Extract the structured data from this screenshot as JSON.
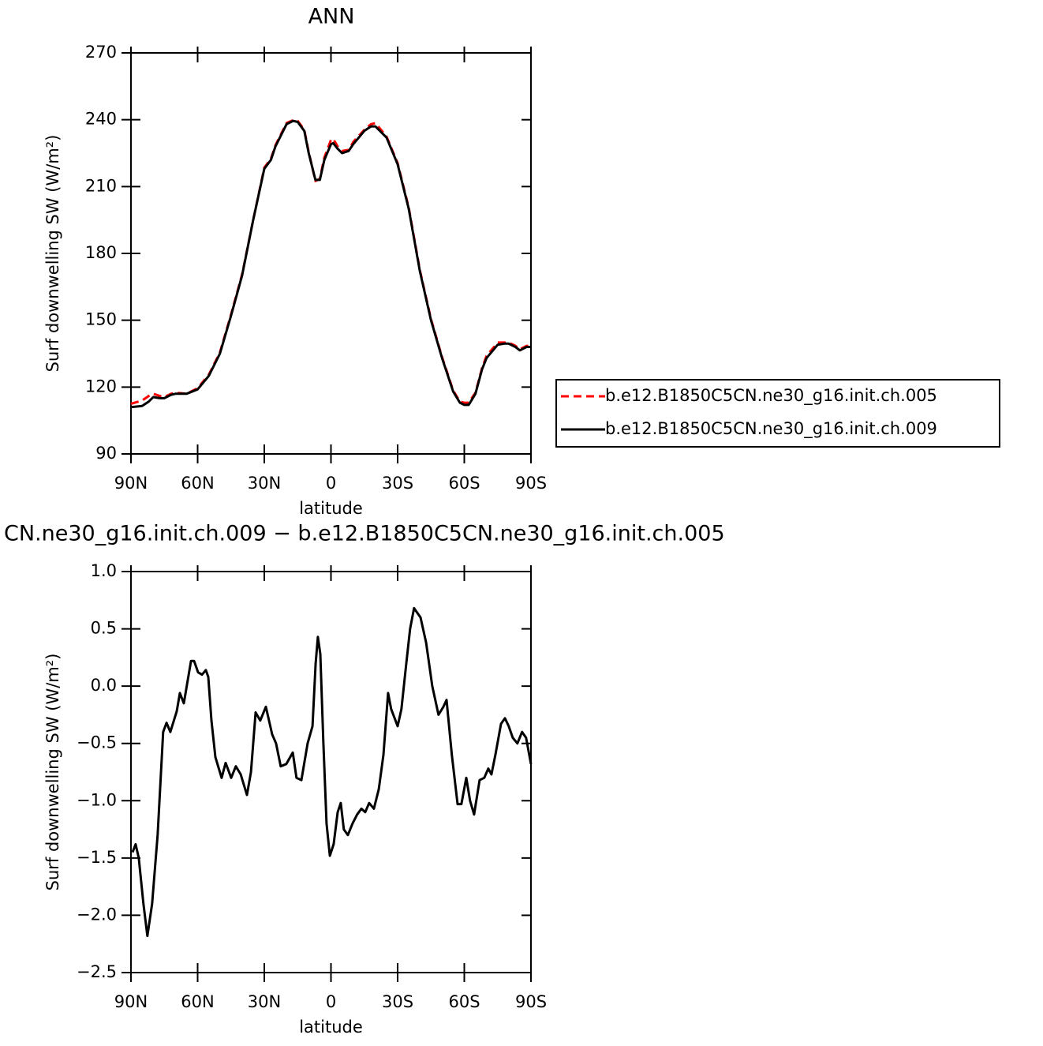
{
  "chart_data": [
    {
      "type": "line",
      "title": "ANN",
      "xlabel": "latitude",
      "ylabel": "Surf downwelling SW (W/m²)",
      "x": [
        90,
        85,
        82,
        80,
        77,
        75,
        72,
        70,
        65,
        60,
        55,
        50,
        45,
        40,
        35,
        30,
        27,
        25,
        20,
        17,
        15,
        12,
        10,
        7,
        5,
        3,
        0,
        -1,
        -3,
        -5,
        -8,
        -10,
        -15,
        -18,
        -20,
        -25,
        -30,
        -35,
        -40,
        -45,
        -50,
        -55,
        -58,
        -60,
        -62,
        -65,
        -68,
        -70,
        -75,
        -78,
        -80,
        -83,
        -85,
        -88,
        -90
      ],
      "series": [
        {
          "name": "b.e12.B1850C5CN.ne30_g16.init.ch.005",
          "color": "#ff0000",
          "line_style": "dashed",
          "values": [
            112.5,
            114,
            116,
            117,
            116,
            115.5,
            117,
            117.5,
            117,
            119.5,
            125.5,
            135.5,
            152.5,
            170.5,
            195,
            218.5,
            222.5,
            228.5,
            238.5,
            239.8,
            239.5,
            235.5,
            225.5,
            212.5,
            213.5,
            223,
            231,
            231.5,
            228,
            226,
            226.5,
            230,
            235.5,
            238,
            238.5,
            232.5,
            220.5,
            200.5,
            172.5,
            150.5,
            133.5,
            118.5,
            113.5,
            113,
            113,
            117.5,
            128.5,
            134,
            140,
            140,
            140,
            138.5,
            137,
            138.5,
            138.5
          ]
        },
        {
          "name": "b.e12.B1850C5CN.ne30_g16.init.ch.009",
          "color": "#000000",
          "line_style": "solid",
          "values": [
            111,
            111.5,
            113.5,
            115.5,
            115,
            115,
            116.5,
            117,
            117,
            119,
            125,
            135,
            152,
            170,
            195,
            218,
            222,
            228,
            238,
            239.5,
            239,
            235,
            225,
            213,
            213,
            222,
            229,
            229.5,
            227,
            225,
            226,
            229,
            235,
            237,
            237,
            232,
            220,
            200,
            172,
            150,
            133,
            118,
            113,
            112,
            112,
            117,
            128,
            133,
            139,
            139.5,
            139.5,
            138,
            136.5,
            138,
            138
          ]
        }
      ],
      "xlim": [
        90,
        -90
      ],
      "xticks": [
        {
          "value": 90,
          "label": "90N"
        },
        {
          "value": 60,
          "label": "60N"
        },
        {
          "value": 30,
          "label": "30N"
        },
        0,
        {
          "value": -30,
          "label": "30S"
        },
        {
          "value": -60,
          "label": "60S"
        },
        {
          "value": -90,
          "label": "90S"
        }
      ],
      "ylim": [
        90,
        270
      ],
      "yticks": [
        90,
        120,
        150,
        180,
        210,
        240,
        270
      ],
      "legend": "right"
    },
    {
      "type": "line",
      "title": "CN.ne30_g16.init.ch.009 − b.e12.B1850C5CN.ne30_g16.init.ch.005",
      "xlabel": "latitude",
      "ylabel": "Surf downwelling SW (W/m²)",
      "x": [
        89.3,
        87.9,
        86.5,
        84.4,
        82.6,
        80.5,
        78,
        75.5,
        74,
        72.3,
        69.4,
        68,
        66.2,
        63,
        61.6,
        59.8,
        58,
        56.3,
        55.2,
        53.8,
        52,
        49.2,
        47.4,
        44.9,
        42.8,
        40.6,
        37.8,
        36,
        33.9,
        31.8,
        29.3,
        26.5,
        24.7,
        22.6,
        20.1,
        17.2,
        15.5,
        13.3,
        10.5,
        8.3,
        6.9,
        5.9,
        4.8,
        3.4,
        2,
        0.5,
        -1.2,
        -3,
        -4.4,
        -5.8,
        -7.6,
        -9.7,
        -11.8,
        -13.7,
        -15.4,
        -17.2,
        -19.3,
        -21.5,
        -23.6,
        -25.7,
        -27.1,
        -30,
        -31.7,
        -33.9,
        -35.6,
        -37.4,
        -40.3,
        -42.8,
        -45.6,
        -48.4,
        -50.6,
        -52,
        -54.4,
        -57,
        -58.7,
        -60.9,
        -62.6,
        -64.4,
        -66.9,
        -69,
        -70.8,
        -72.2,
        -74,
        -76.5,
        -78.3,
        -80,
        -81.8,
        -83.9,
        -86,
        -87.8,
        -90
      ],
      "series": [
        {
          "color": "#000000",
          "line_style": "solid",
          "values": [
            -1.45,
            -1.38,
            -1.5,
            -1.9,
            -2.18,
            -1.9,
            -1.3,
            -0.4,
            -0.32,
            -0.4,
            -0.22,
            -0.06,
            -0.15,
            0.22,
            0.22,
            0.12,
            0.1,
            0.14,
            0.08,
            -0.3,
            -0.62,
            -0.8,
            -0.67,
            -0.8,
            -0.7,
            -0.77,
            -0.95,
            -0.75,
            -0.23,
            -0.3,
            -0.18,
            -0.42,
            -0.5,
            -0.7,
            -0.68,
            -0.58,
            -0.8,
            -0.82,
            -0.5,
            -0.35,
            0.2,
            0.43,
            0.28,
            -0.5,
            -1.2,
            -1.48,
            -1.38,
            -1.1,
            -1.02,
            -1.25,
            -1.3,
            -1.2,
            -1.12,
            -1.07,
            -1.1,
            -1.02,
            -1.07,
            -0.9,
            -0.6,
            -0.06,
            -0.2,
            -0.35,
            -0.2,
            0.2,
            0.5,
            0.68,
            0.6,
            0.38,
            0,
            -0.25,
            -0.18,
            -0.12,
            -0.6,
            -1.03,
            -1.03,
            -0.8,
            -1.0,
            -1.12,
            -0.82,
            -0.8,
            -0.72,
            -0.77,
            -0.6,
            -0.33,
            -0.28,
            -0.35,
            -0.45,
            -0.5,
            -0.4,
            -0.45,
            -0.68
          ]
        }
      ],
      "xlim": [
        90,
        -90
      ],
      "xticks": [
        {
          "value": 90,
          "label": "90N"
        },
        {
          "value": 60,
          "label": "60N"
        },
        {
          "value": 30,
          "label": "30N"
        },
        0,
        {
          "value": -30,
          "label": "30S"
        },
        {
          "value": -60,
          "label": "60S"
        },
        {
          "value": -90,
          "label": "90S"
        }
      ],
      "ylim": [
        -2.5,
        1.0
      ],
      "yticks": [
        {
          "value": -2.5,
          "label": "−2.5"
        },
        {
          "value": -2.0,
          "label": "−2.0"
        },
        {
          "value": -1.5,
          "label": "−1.5"
        },
        {
          "value": -1.0,
          "label": "−1.0"
        },
        {
          "value": -0.5,
          "label": "−0.5"
        },
        {
          "value": 0,
          "label": "0.0"
        },
        {
          "value": 0.5,
          "label": "0.5"
        },
        {
          "value": 1.0,
          "label": "1.0"
        }
      ]
    }
  ]
}
